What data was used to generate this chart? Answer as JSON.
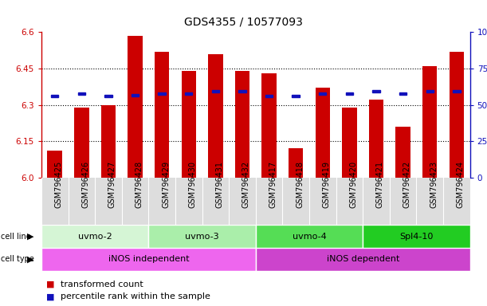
{
  "title": "GDS4355 / 10577093",
  "samples": [
    "GSM796425",
    "GSM796426",
    "GSM796427",
    "GSM796428",
    "GSM796429",
    "GSM796430",
    "GSM796431",
    "GSM796432",
    "GSM796417",
    "GSM796418",
    "GSM796419",
    "GSM796420",
    "GSM796421",
    "GSM796422",
    "GSM796423",
    "GSM796424"
  ],
  "bar_values": [
    6.11,
    6.29,
    6.3,
    6.585,
    6.52,
    6.44,
    6.51,
    6.44,
    6.43,
    6.12,
    6.37,
    6.29,
    6.32,
    6.21,
    6.46,
    6.52
  ],
  "percentile_values": [
    6.335,
    6.345,
    6.335,
    6.34,
    6.345,
    6.345,
    6.355,
    6.355,
    6.335,
    6.335,
    6.345,
    6.345,
    6.355,
    6.345,
    6.355,
    6.355
  ],
  "bar_color": "#cc0000",
  "percentile_color": "#1111bb",
  "ylim": [
    6.0,
    6.6
  ],
  "yticks_left": [
    6.0,
    6.15,
    6.3,
    6.45,
    6.6
  ],
  "yticks_right": [
    0,
    25,
    50,
    75,
    100
  ],
  "y2labels": [
    "0",
    "25",
    "50",
    "75",
    "100%"
  ],
  "cell_lines": [
    {
      "label": "uvmo-2",
      "start": 0,
      "end": 4,
      "color": "#d5f5d5"
    },
    {
      "label": "uvmo-3",
      "start": 4,
      "end": 8,
      "color": "#aaeeaa"
    },
    {
      "label": "uvmo-4",
      "start": 8,
      "end": 12,
      "color": "#55dd55"
    },
    {
      "label": "Spl4-10",
      "start": 12,
      "end": 16,
      "color": "#22cc22"
    }
  ],
  "cell_types": [
    {
      "label": "iNOS independent",
      "start": 0,
      "end": 8,
      "color": "#ee66ee"
    },
    {
      "label": "iNOS dependent",
      "start": 8,
      "end": 16,
      "color": "#cc44cc"
    }
  ],
  "legend_items": [
    {
      "label": "transformed count",
      "color": "#cc0000"
    },
    {
      "label": "percentile rank within the sample",
      "color": "#1111bb"
    }
  ],
  "title_fontsize": 10,
  "tick_fontsize": 7.5,
  "sample_fontsize": 7,
  "cell_fontsize": 8,
  "legend_fontsize": 8
}
